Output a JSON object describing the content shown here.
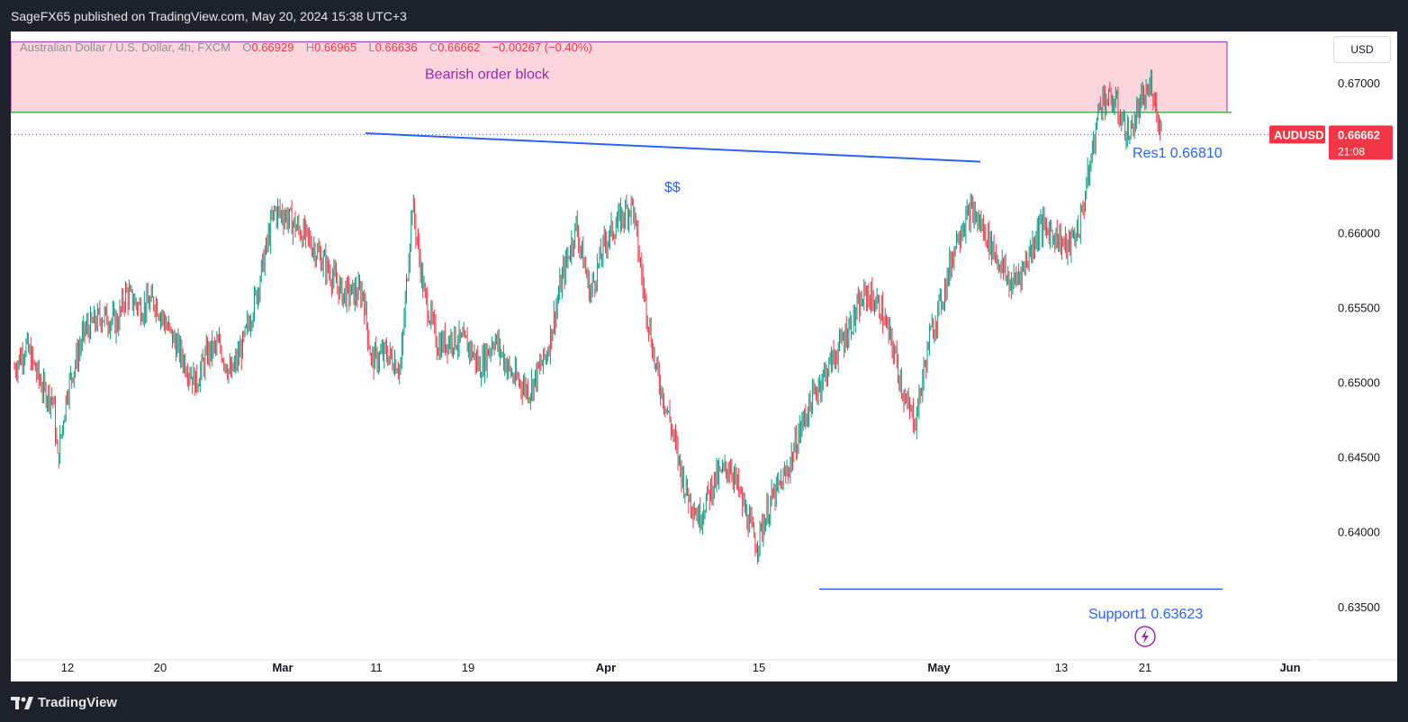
{
  "header": {
    "publisher_line": "SageFX65 published on TradingView.com, May 20, 2024 15:38 UTC+3"
  },
  "legend": {
    "symbol_text": "Australian Dollar / U.S. Dollar, 4h, FXCM",
    "o_label": "O",
    "o_value": "0.66929",
    "h_label": "H",
    "h_value": "0.66965",
    "l_label": "L",
    "l_value": "0.66636",
    "c_label": "C",
    "c_value": "0.66662",
    "change": "−0.00267 (−0.40%)"
  },
  "currency_button": "USD",
  "last_price": {
    "symbol": "AUDUSD",
    "price": "0.66662",
    "countdown": "21:08"
  },
  "footer": {
    "brand": "TradingView",
    "logo_icon": "tradingview-logo-icon"
  },
  "colors": {
    "up": "#089981",
    "down": "#f23645",
    "zone_fill": "#fcd6dc",
    "zone_border": "#9c27b0",
    "level_line": "#4caf50",
    "trend_line": "#2962ff",
    "text_purple": "#9c27b0",
    "text_blue": "#2962ff"
  },
  "chart_data": {
    "type": "candlestick",
    "symbol": "AUDUSD",
    "timeframe": "4h",
    "y_ticks": [
      0.635,
      0.64,
      0.645,
      0.65,
      0.655,
      0.66,
      0.67
    ],
    "y_tick_labels": [
      "0.63500",
      "0.64000",
      "0.64500",
      "0.65000",
      "0.65500",
      "0.66000",
      "0.67000"
    ],
    "ylim": [
      0.6315,
      0.6735
    ],
    "x_tick_labels": [
      "12",
      "20",
      "Mar",
      "11",
      "19",
      "Apr",
      "15",
      "May",
      "13",
      "21",
      "Jun"
    ],
    "x_tick_bold": [
      false,
      false,
      true,
      false,
      false,
      true,
      false,
      true,
      false,
      false,
      true
    ],
    "close_anchors": [
      [
        0,
        0.651
      ],
      [
        10,
        0.6525
      ],
      [
        25,
        0.6495
      ],
      [
        33,
        0.649
      ],
      [
        37,
        0.6448
      ],
      [
        45,
        0.6495
      ],
      [
        60,
        0.6535
      ],
      [
        75,
        0.6545
      ],
      [
        88,
        0.654
      ],
      [
        95,
        0.656
      ],
      [
        108,
        0.655
      ],
      [
        120,
        0.6555
      ],
      [
        132,
        0.6535
      ],
      [
        145,
        0.6515
      ],
      [
        155,
        0.65
      ],
      [
        165,
        0.652
      ],
      [
        175,
        0.6525
      ],
      [
        185,
        0.6505
      ],
      [
        195,
        0.6525
      ],
      [
        207,
        0.656
      ],
      [
        222,
        0.6615
      ],
      [
        232,
        0.6612
      ],
      [
        240,
        0.6605
      ],
      [
        252,
        0.6595
      ],
      [
        265,
        0.658
      ],
      [
        280,
        0.656
      ],
      [
        298,
        0.656
      ],
      [
        305,
        0.6515
      ],
      [
        318,
        0.652
      ],
      [
        330,
        0.651
      ],
      [
        340,
        0.662
      ],
      [
        350,
        0.656
      ],
      [
        362,
        0.6525
      ],
      [
        375,
        0.653
      ],
      [
        388,
        0.6525
      ],
      [
        398,
        0.651
      ],
      [
        410,
        0.653
      ],
      [
        425,
        0.6505
      ],
      [
        440,
        0.6495
      ],
      [
        455,
        0.652
      ],
      [
        468,
        0.657
      ],
      [
        480,
        0.6605
      ],
      [
        492,
        0.656
      ],
      [
        505,
        0.6595
      ],
      [
        518,
        0.661
      ],
      [
        528,
        0.662
      ],
      [
        538,
        0.656
      ],
      [
        548,
        0.651
      ],
      [
        560,
        0.6475
      ],
      [
        573,
        0.643
      ],
      [
        585,
        0.641
      ],
      [
        598,
        0.6435
      ],
      [
        612,
        0.6445
      ],
      [
        624,
        0.6415
      ],
      [
        634,
        0.6392
      ],
      [
        646,
        0.642
      ],
      [
        660,
        0.644
      ],
      [
        674,
        0.6475
      ],
      [
        688,
        0.65
      ],
      [
        702,
        0.652
      ],
      [
        715,
        0.654
      ],
      [
        728,
        0.656
      ],
      [
        740,
        0.655
      ],
      [
        752,
        0.652
      ],
      [
        762,
        0.6485
      ],
      [
        770,
        0.6475
      ],
      [
        782,
        0.653
      ],
      [
        794,
        0.656
      ],
      [
        806,
        0.66
      ],
      [
        818,
        0.6615
      ],
      [
        830,
        0.66
      ],
      [
        842,
        0.658
      ],
      [
        852,
        0.6565
      ],
      [
        864,
        0.658
      ],
      [
        876,
        0.6605
      ],
      [
        888,
        0.66
      ],
      [
        900,
        0.659
      ],
      [
        910,
        0.6605
      ],
      [
        918,
        0.664
      ],
      [
        928,
        0.669
      ],
      [
        940,
        0.6688
      ],
      [
        952,
        0.6665
      ],
      [
        962,
        0.6685
      ],
      [
        972,
        0.67
      ],
      [
        980,
        0.6666
      ]
    ],
    "n_bars": 981,
    "annotations": {
      "bearish_order_block": {
        "label": "Bearish order block",
        "price_top": 0.6728,
        "price_bottom": 0.6681
      },
      "res1": {
        "label": "Res1 0.66810",
        "price": 0.6681
      },
      "support1": {
        "label": "Support1  0.63623",
        "price": 0.63623
      },
      "liquidity_line": {
        "label": "$$",
        "price_start": 0.6667,
        "price_end": 0.6648
      },
      "last_price_line": 0.66662
    },
    "grid": false,
    "legend_position": "top-left"
  }
}
